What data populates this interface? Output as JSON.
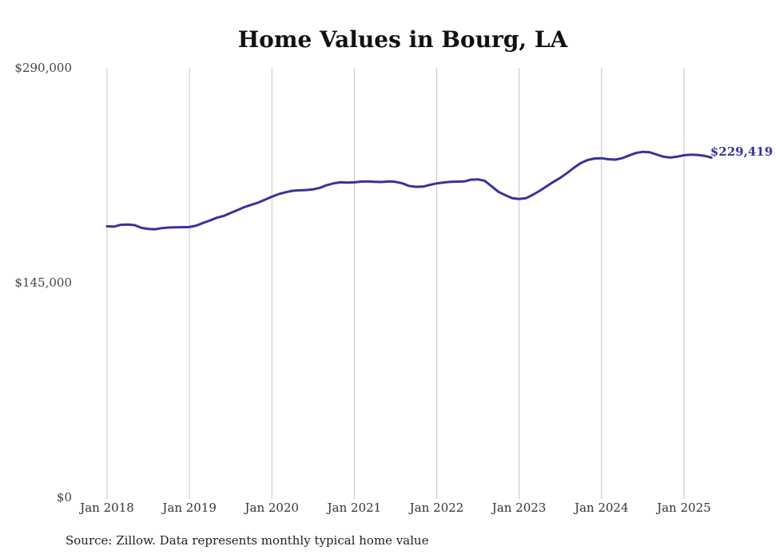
{
  "chart_data": {
    "type": "line",
    "title": "Home Values in Bourg, LA",
    "ylim": [
      0,
      290000
    ],
    "y_ticks": [
      {
        "value": 0,
        "label": "$0"
      },
      {
        "value": 145000,
        "label": "$145,000"
      },
      {
        "value": 290000,
        "label": "$290,000"
      }
    ],
    "x_ticks": [
      "Jan 2018",
      "Jan 2019",
      "Jan 2020",
      "Jan 2021",
      "Jan 2022",
      "Jan 2023",
      "Jan 2024",
      "Jan 2025"
    ],
    "grid": "vertical",
    "series": [
      {
        "color": "#38339a",
        "end_label": "$229,419",
        "points": [
          [
            "2018-01",
            183000
          ],
          [
            "2018-02",
            182800
          ],
          [
            "2018-03",
            184000
          ],
          [
            "2018-04",
            184200
          ],
          [
            "2018-05",
            183800
          ],
          [
            "2018-06",
            182000
          ],
          [
            "2018-07",
            181200
          ],
          [
            "2018-08",
            181000
          ],
          [
            "2018-09",
            181800
          ],
          [
            "2018-10",
            182200
          ],
          [
            "2018-11",
            182300
          ],
          [
            "2018-12",
            182400
          ],
          [
            "2019-01",
            182500
          ],
          [
            "2019-02",
            183500
          ],
          [
            "2019-03",
            185300
          ],
          [
            "2019-04",
            187000
          ],
          [
            "2019-05",
            188800
          ],
          [
            "2019-06",
            190000
          ],
          [
            "2019-07",
            192000
          ],
          [
            "2019-08",
            194000
          ],
          [
            "2019-09",
            196000
          ],
          [
            "2019-10",
            197500
          ],
          [
            "2019-11",
            199000
          ],
          [
            "2019-12",
            201000
          ],
          [
            "2020-01",
            203000
          ],
          [
            "2020-02",
            204800
          ],
          [
            "2020-03",
            206000
          ],
          [
            "2020-04",
            207000
          ],
          [
            "2020-05",
            207300
          ],
          [
            "2020-06",
            207500
          ],
          [
            "2020-07",
            208000
          ],
          [
            "2020-08",
            209000
          ],
          [
            "2020-09",
            210800
          ],
          [
            "2020-10",
            212000
          ],
          [
            "2020-11",
            212700
          ],
          [
            "2020-12",
            212500
          ],
          [
            "2021-01",
            212700
          ],
          [
            "2021-02",
            213200
          ],
          [
            "2021-03",
            213300
          ],
          [
            "2021-04",
            213100
          ],
          [
            "2021-05",
            212900
          ],
          [
            "2021-06",
            213300
          ],
          [
            "2021-07",
            213000
          ],
          [
            "2021-08",
            212000
          ],
          [
            "2021-09",
            210200
          ],
          [
            "2021-10",
            209700
          ],
          [
            "2021-11",
            209800
          ],
          [
            "2021-12",
            211000
          ],
          [
            "2022-01",
            212000
          ],
          [
            "2022-02",
            212600
          ],
          [
            "2022-03",
            213000
          ],
          [
            "2022-04",
            213200
          ],
          [
            "2022-05",
            213300
          ],
          [
            "2022-06",
            214500
          ],
          [
            "2022-07",
            214700
          ],
          [
            "2022-08",
            213700
          ],
          [
            "2022-09",
            210000
          ],
          [
            "2022-10",
            206300
          ],
          [
            "2022-11",
            204000
          ],
          [
            "2022-12",
            202000
          ],
          [
            "2023-01",
            201500
          ],
          [
            "2023-02",
            202000
          ],
          [
            "2023-03",
            204300
          ],
          [
            "2023-04",
            207000
          ],
          [
            "2023-05",
            210000
          ],
          [
            "2023-06",
            213000
          ],
          [
            "2023-07",
            215800
          ],
          [
            "2023-08",
            219000
          ],
          [
            "2023-09",
            222600
          ],
          [
            "2023-10",
            225800
          ],
          [
            "2023-11",
            227800
          ],
          [
            "2023-12",
            228800
          ],
          [
            "2024-01",
            229000
          ],
          [
            "2024-02",
            228300
          ],
          [
            "2024-03",
            228000
          ],
          [
            "2024-04",
            229000
          ],
          [
            "2024-05",
            230800
          ],
          [
            "2024-06",
            232500
          ],
          [
            "2024-07",
            233300
          ],
          [
            "2024-08",
            233000
          ],
          [
            "2024-09",
            231500
          ],
          [
            "2024-10",
            230000
          ],
          [
            "2024-11",
            229400
          ],
          [
            "2024-12",
            230000
          ],
          [
            "2025-01",
            231000
          ],
          [
            "2025-02",
            231400
          ],
          [
            "2025-03",
            231200
          ],
          [
            "2025-04",
            230600
          ],
          [
            "2025-05",
            229419
          ]
        ]
      }
    ]
  },
  "source": "Source: Zillow. Data represents monthly typical home value"
}
